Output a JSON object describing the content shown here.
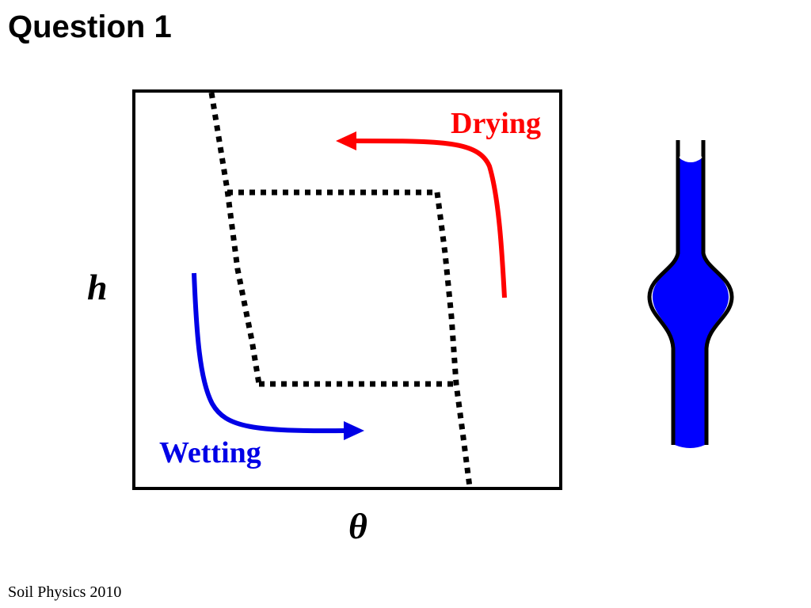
{
  "title": "Question 1",
  "footer": "Soil Physics 2010",
  "diagram": {
    "y_axis_label": "h",
    "x_axis_label": "θ",
    "drying_label": "Drying",
    "wetting_label": "Wetting",
    "colors": {
      "drying": "#ff0000",
      "wetting": "#0000e6",
      "frame": "#000000",
      "pore_water": "#0000ff"
    }
  }
}
